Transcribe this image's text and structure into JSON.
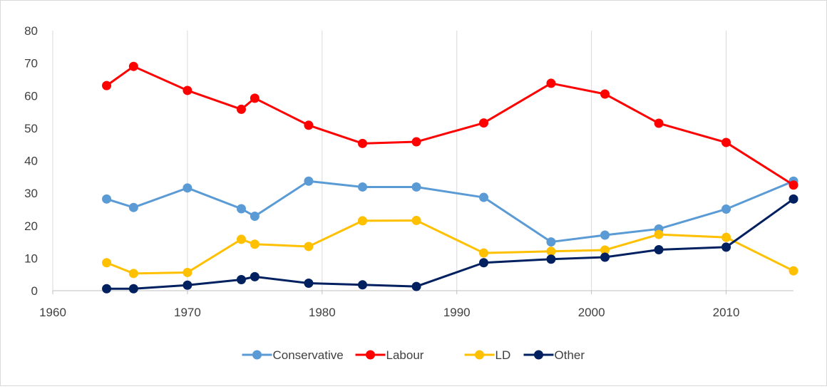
{
  "chart_data": {
    "type": "line",
    "title": "",
    "xlabel": "",
    "ylabel": "",
    "xlim": [
      1960,
      2015
    ],
    "ylim": [
      0,
      80
    ],
    "x_ticks": [
      1960,
      1970,
      1980,
      1990,
      2000,
      2010
    ],
    "y_ticks": [
      0,
      10,
      20,
      30,
      40,
      50,
      60,
      70,
      80
    ],
    "grid": "vertical",
    "legend_position": "bottom",
    "series": [
      {
        "name": "Conservative",
        "color": "#5b9bd5",
        "points": [
          [
            1964,
            28.2
          ],
          [
            1966,
            25.6
          ],
          [
            1970,
            31.6
          ],
          [
            1974,
            25.2
          ],
          [
            1975,
            22.9
          ],
          [
            1979,
            33.7
          ],
          [
            1983,
            31.9
          ],
          [
            1987,
            31.9
          ],
          [
            1992,
            28.7
          ],
          [
            1997,
            15.0
          ],
          [
            2001,
            17.1
          ],
          [
            2005,
            19.0
          ],
          [
            2010,
            25.1
          ],
          [
            2015,
            33.7
          ]
        ]
      },
      {
        "name": "Labour",
        "color": "#ff0000",
        "points": [
          [
            1964,
            63.1
          ],
          [
            1966,
            69.0
          ],
          [
            1970,
            61.6
          ],
          [
            1974,
            55.8
          ],
          [
            1975,
            59.2
          ],
          [
            1979,
            50.9
          ],
          [
            1983,
            45.3
          ],
          [
            1987,
            45.8
          ],
          [
            1992,
            51.6
          ],
          [
            1997,
            63.8
          ],
          [
            2001,
            60.5
          ],
          [
            2005,
            51.5
          ],
          [
            2010,
            45.6
          ],
          [
            2015,
            32.5
          ]
        ]
      },
      {
        "name": "LD",
        "color": "#ffc000",
        "points": [
          [
            1964,
            8.6
          ],
          [
            1966,
            5.3
          ],
          [
            1970,
            5.6
          ],
          [
            1974,
            15.8
          ],
          [
            1975,
            14.3
          ],
          [
            1979,
            13.6
          ],
          [
            1983,
            21.5
          ],
          [
            1987,
            21.6
          ],
          [
            1992,
            11.6
          ],
          [
            1997,
            12.1
          ],
          [
            2001,
            12.5
          ],
          [
            2005,
            17.3
          ],
          [
            2010,
            16.4
          ],
          [
            2015,
            6.1
          ]
        ]
      },
      {
        "name": "Other",
        "color": "#002060",
        "points": [
          [
            1964,
            0.6
          ],
          [
            1966,
            0.6
          ],
          [
            1970,
            1.7
          ],
          [
            1974,
            3.4
          ],
          [
            1975,
            4.3
          ],
          [
            1979,
            2.3
          ],
          [
            1983,
            1.8
          ],
          [
            1987,
            1.3
          ],
          [
            1992,
            8.6
          ],
          [
            1997,
            9.7
          ],
          [
            2001,
            10.3
          ],
          [
            2005,
            12.6
          ],
          [
            2010,
            13.4
          ],
          [
            2015,
            28.2
          ]
        ]
      }
    ]
  }
}
